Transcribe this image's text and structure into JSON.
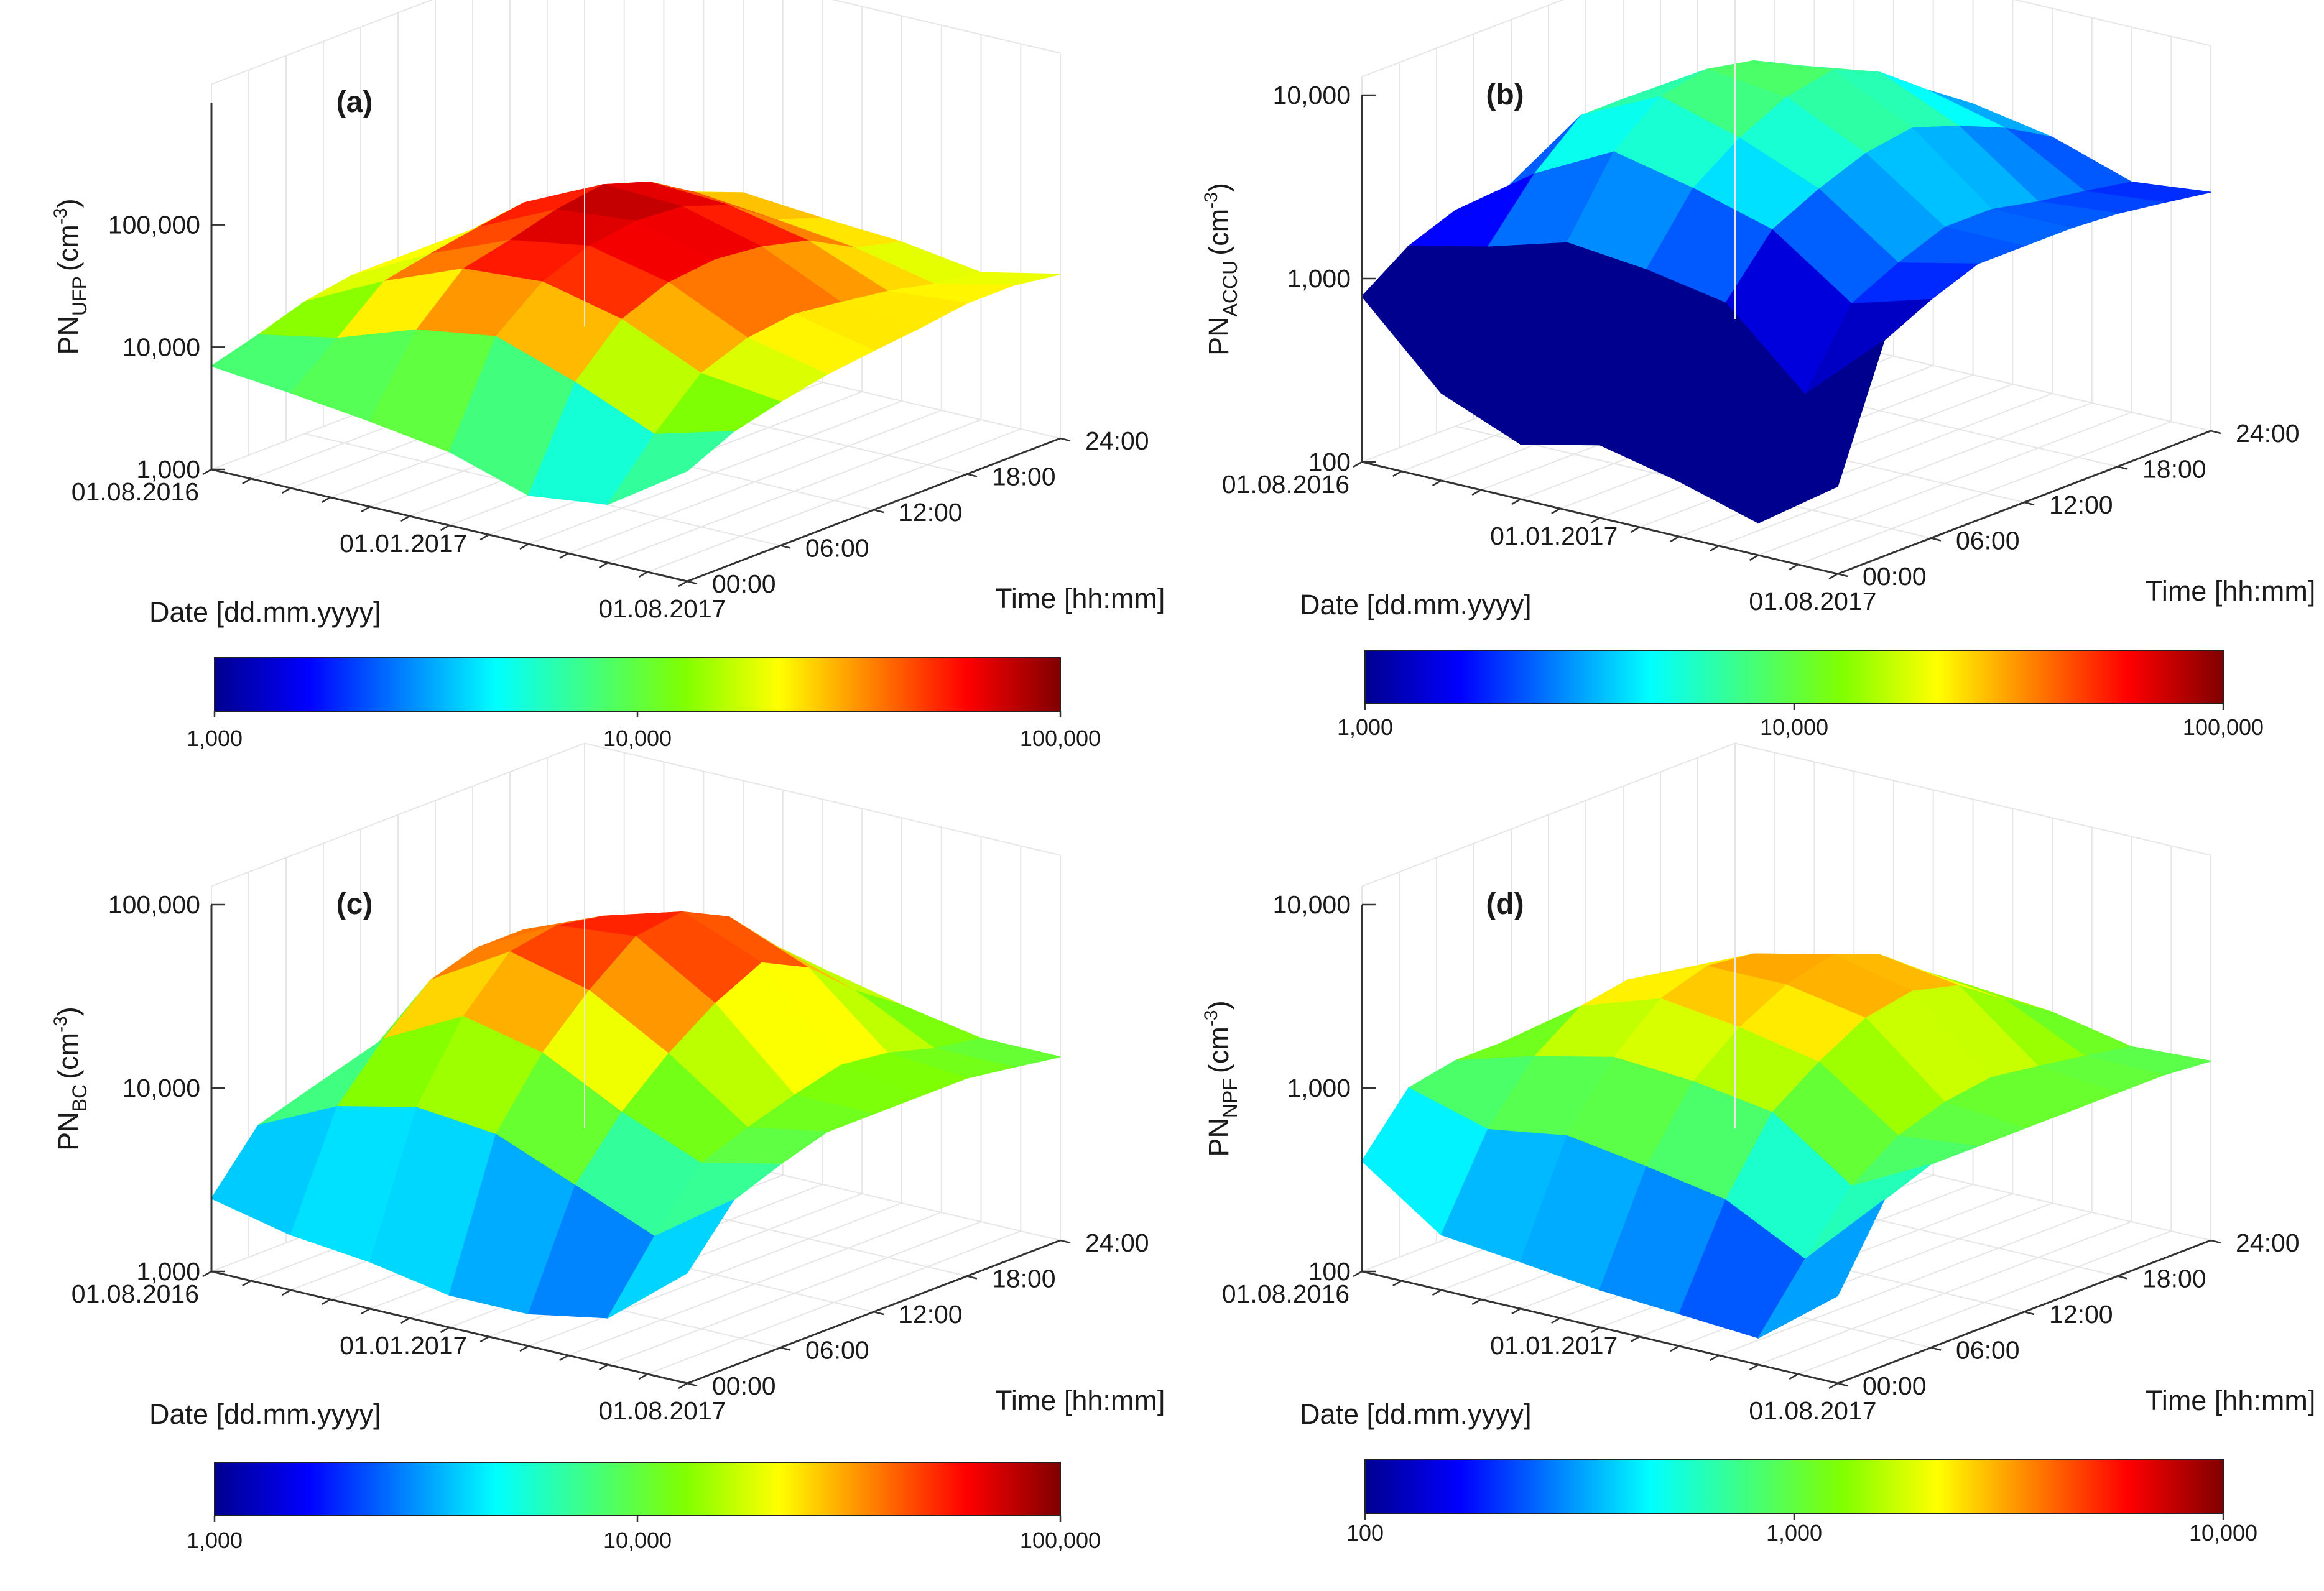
{
  "colormap": [
    "#00008f",
    "#0000ff",
    "#0080ff",
    "#00ffff",
    "#40ff80",
    "#80ff00",
    "#ffff00",
    "#ff8000",
    "#ff0000",
    "#800000"
  ],
  "chart_data": [
    {
      "type": "surface3d",
      "panel": "(a)",
      "zlabel_main": "PN",
      "zlabel_sub": "UFP",
      "zlabel_unit": "(cm",
      "zlabel_exp": "-3",
      "zlabel_close": ")",
      "xlabel": "Date [dd.mm.yyyy]",
      "ylabel": "Time [hh:mm]",
      "ztick_labels": [
        "1,000",
        "10,000",
        "100,000"
      ],
      "zlim": [
        1000,
        1000000
      ],
      "date_ticks": [
        "01.08.2016",
        "01.01.2017",
        "01.08.2017"
      ],
      "time_ticks": [
        "00:00",
        "06:00",
        "12:00",
        "18:00",
        "24:00"
      ],
      "colorbar_ticks": [
        "1,000",
        "10,000",
        "100,000"
      ],
      "clim": [
        1000,
        100000
      ],
      "surface_grid": {
        "rows_time": [
          "00:00",
          "03:00",
          "06:00",
          "09:00",
          "12:00",
          "15:00",
          "18:00",
          "21:00",
          "24:00"
        ],
        "cols_date": [
          "01.08.2016",
          "01.10.2016",
          "01.12.2016",
          "01.02.2017",
          "01.04.2017",
          "01.06.2017",
          "01.08.2017"
        ],
        "z": [
          [
            7000,
            6000,
            5000,
            4000,
            2500,
            3000,
            8000
          ],
          [
            9000,
            12000,
            20000,
            25000,
            15000,
            8000,
            12000
          ],
          [
            12000,
            25000,
            45000,
            50000,
            35000,
            18000,
            15000
          ],
          [
            14000,
            30000,
            55000,
            70000,
            50000,
            25000,
            18000
          ],
          [
            14000,
            35000,
            70000,
            80000,
            55000,
            28000,
            20000
          ],
          [
            13000,
            40000,
            80000,
            75000,
            50000,
            25000,
            22000
          ],
          [
            12000,
            30000,
            60000,
            55000,
            40000,
            22000,
            25000
          ],
          [
            11000,
            22000,
            35000,
            30000,
            25000,
            18000,
            25000
          ],
          [
            10000,
            18000,
            25000,
            22000,
            20000,
            16000,
            22000
          ]
        ]
      }
    },
    {
      "type": "surface3d",
      "panel": "(b)",
      "zlabel_main": "PN",
      "zlabel_sub": "ACCU",
      "zlabel_unit": "(cm",
      "zlabel_exp": "-3",
      "zlabel_close": ")",
      "xlabel": "Date [dd.mm.yyyy]",
      "ylabel": "Time [hh:mm]",
      "ztick_labels": [
        "100",
        "1,000",
        "10,000"
      ],
      "zlim": [
        100,
        10000
      ],
      "date_ticks": [
        "01.08.2016",
        "01.01.2017",
        "01.08.2017"
      ],
      "time_ticks": [
        "00:00",
        "06:00",
        "12:00",
        "18:00",
        "24:00"
      ],
      "colorbar_ticks": [
        "1,000",
        "10,000",
        "100,000"
      ],
      "clim": [
        1000,
        100000
      ],
      "surface_grid": {
        "rows_time": [
          "00:00",
          "03:00",
          "06:00",
          "09:00",
          "12:00",
          "15:00",
          "18:00",
          "21:00",
          "24:00"
        ],
        "cols_date": [
          "01.08.2016",
          "01.10.2016",
          "01.12.2016",
          "01.02.2017",
          "01.04.2017",
          "01.06.2017",
          "01.08.2017"
        ],
        "z": [
          [
            800,
            300,
            200,
            250,
            200,
            150,
            300
          ],
          [
            1200,
            1500,
            2000,
            1800,
            1500,
            600,
            1500
          ],
          [
            1500,
            3000,
            5000,
            4000,
            3000,
            1500,
            2000
          ],
          [
            1500,
            5000,
            8000,
            6000,
            4000,
            2000,
            2500
          ],
          [
            1500,
            5000,
            9000,
            8000,
            5000,
            2500,
            2500
          ],
          [
            1400,
            4500,
            8000,
            9000,
            5500,
            2500,
            2500
          ],
          [
            1300,
            3500,
            6000,
            7000,
            4500,
            2200,
            2400
          ],
          [
            1200,
            2500,
            4000,
            4500,
            3500,
            2000,
            2200
          ],
          [
            1100,
            2000,
            3000,
            3000,
            2500,
            1800,
            2000
          ]
        ]
      }
    },
    {
      "type": "surface3d",
      "panel": "(c)",
      "zlabel_main": "PN",
      "zlabel_sub": "BC",
      "zlabel_unit": "(cm",
      "zlabel_exp": "-3",
      "zlabel_close": ")",
      "xlabel": "Date [dd.mm.yyyy]",
      "ylabel": "Time [hh:mm]",
      "ztick_labels": [
        "1,000",
        "10,000",
        "100,000"
      ],
      "zlim": [
        1000,
        100000
      ],
      "date_ticks": [
        "01.08.2016",
        "01.01.2017",
        "01.08.2017"
      ],
      "time_ticks": [
        "00:00",
        "06:00",
        "12:00",
        "18:00",
        "24:00"
      ],
      "colorbar_ticks": [
        "1,000",
        "10,000",
        "100,000"
      ],
      "clim": [
        1000,
        100000
      ],
      "surface_grid": {
        "rows_time": [
          "00:00",
          "03:00",
          "06:00",
          "09:00",
          "12:00",
          "15:00",
          "18:00",
          "21:00",
          "24:00"
        ],
        "cols_date": [
          "01.08.2016",
          "01.10.2016",
          "01.12.2016",
          "01.02.2017",
          "01.04.2017",
          "01.06.2017",
          "01.08.2017"
        ],
        "z": [
          [
            2500,
            2000,
            1800,
            1500,
            1500,
            1800,
            4000
          ],
          [
            5000,
            8000,
            10000,
            9000,
            6000,
            4000,
            8000
          ],
          [
            6000,
            15000,
            25000,
            20000,
            12000,
            8000,
            10000
          ],
          [
            6000,
            25000,
            45000,
            35000,
            20000,
            10000,
            12000
          ],
          [
            6000,
            30000,
            50000,
            55000,
            30000,
            12000,
            12000
          ],
          [
            5500,
            30000,
            45000,
            60000,
            40000,
            14000,
            12000
          ],
          [
            5000,
            20000,
            35000,
            45000,
            30000,
            13000,
            12000
          ],
          [
            4500,
            12000,
            20000,
            25000,
            18000,
            11000,
            11000
          ],
          [
            4000,
            10000,
            15000,
            15000,
            12000,
            10000,
            10000
          ]
        ]
      }
    },
    {
      "type": "surface3d",
      "panel": "(d)",
      "zlabel_main": "PN",
      "zlabel_sub": "NPF",
      "zlabel_unit": "(cm",
      "zlabel_exp": "-3",
      "zlabel_close": ")",
      "xlabel": "Date [dd.mm.yyyy]",
      "ylabel": "Time [hh:mm]",
      "ztick_labels": [
        "100",
        "1,000",
        "10,000"
      ],
      "zlim": [
        100,
        10000
      ],
      "date_ticks": [
        "01.08.2016",
        "01.01.2017",
        "01.08.2017"
      ],
      "time_ticks": [
        "00:00",
        "06:00",
        "12:00",
        "18:00",
        "24:00"
      ],
      "colorbar_ticks": [
        "100",
        "1,000",
        "10,000"
      ],
      "clim": [
        100,
        10000
      ],
      "surface_grid": {
        "rows_time": [
          "00:00",
          "03:00",
          "06:00",
          "09:00",
          "12:00",
          "15:00",
          "18:00",
          "21:00",
          "24:00"
        ],
        "cols_date": [
          "01.08.2016",
          "01.10.2016",
          "01.12.2016",
          "01.02.2017",
          "01.04.2017",
          "01.06.2017",
          "01.08.2017"
        ],
        "z": [
          [
            400,
            200,
            180,
            160,
            150,
            140,
            300
          ],
          [
            800,
            600,
            700,
            600,
            500,
            300,
            800
          ],
          [
            900,
            1200,
            1500,
            1400,
            1200,
            600,
            1000
          ],
          [
            900,
            1800,
            2500,
            2200,
            1800,
            900,
            1000
          ],
          [
            900,
            2000,
            3000,
            3000,
            2500,
            1100,
            1000
          ],
          [
            850,
            1800,
            2800,
            3500,
            2800,
            1200,
            1000
          ],
          [
            800,
            1500,
            2200,
            2800,
            2400,
            1100,
            1000
          ],
          [
            800,
            1200,
            1600,
            1800,
            1600,
            1000,
            1000
          ],
          [
            800,
            1000,
            1200,
            1200,
            1100,
            900,
            950
          ]
        ]
      }
    }
  ]
}
